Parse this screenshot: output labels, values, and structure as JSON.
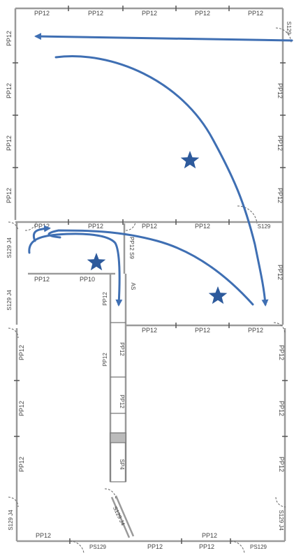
{
  "colors": {
    "wall": "#9a9a9a",
    "wall_dark": "#555555",
    "arrow": "#3f6fb3",
    "star": "#2d5a9c",
    "label": "#444444"
  },
  "labels": {
    "top_row": [
      "PP12",
      "PP12",
      "PP12",
      "PP12",
      "PP12"
    ],
    "top_right_vertical": "S129",
    "left_upper": [
      "PP12",
      "PP12",
      "PP12",
      "PP12"
    ],
    "right_upper": [
      "PP12",
      "PP12",
      "PP12"
    ],
    "middle_row": [
      "PP12",
      "PP12",
      "PP12",
      "PP12"
    ],
    "middle_s129": "S129",
    "left_mid_vertical_1": "S129 J4",
    "left_mid_vertical_2": "S129 J4",
    "mid_left_h1": "PP12",
    "mid_left_h2": "PP10",
    "center_vertical": "PP12 S9",
    "center_small": "AS",
    "right_mid_vertical": "PP12",
    "lower_row": [
      "PP12",
      "PP12",
      "PP12"
    ],
    "center_column": [
      "PP12",
      "PP12",
      "PP12",
      "PP12"
    ],
    "center_bottom": "SP4",
    "left_lower": [
      "PP12",
      "PP12",
      "PP12"
    ],
    "left_lower_s129": "S129 J4",
    "right_lower": [
      "PP12",
      "PP12",
      "PP12"
    ],
    "right_lower_s129": "S129 J4",
    "diag_label": "S129 J4",
    "bottom_row": [
      "PP12",
      "PS129",
      "PP12",
      "PP12",
      "PP12",
      "PS129"
    ]
  }
}
